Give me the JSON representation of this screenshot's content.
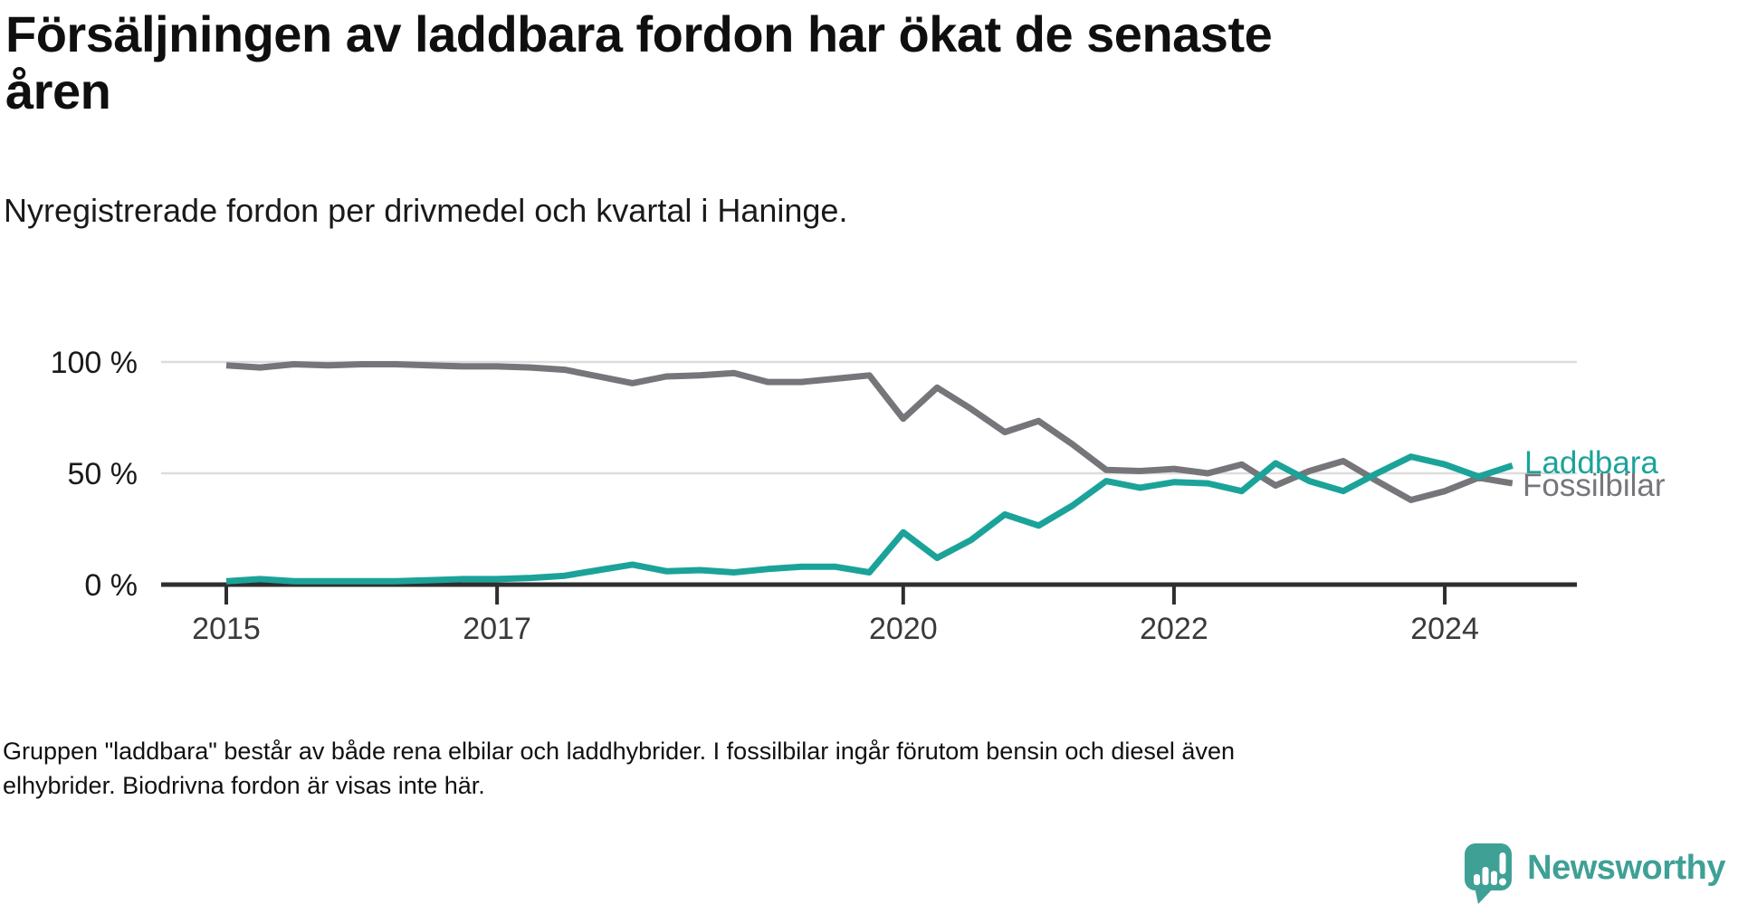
{
  "title": {
    "line1": "Försäljningen av laddbara fordon har ökat de senaste",
    "line2": "åren"
  },
  "subtitle": "Nyregistrerade fordon per drivmedel och kvartal i Haninge.",
  "footnote": {
    "line1": "Gruppen \"laddbara\" består av både rena elbilar och laddhybrider. I fossilbilar ingår förutom bensin och diesel även",
    "line2": "elhybrider. Biodrivna fordon är visas inte här."
  },
  "brand": {
    "name": "Newsworthy",
    "color": "#3fa096",
    "icon": "newsworthy-speech-bubble-chart-icon"
  },
  "colors": {
    "laddbara_line": "#1ba39a",
    "fossil_line": "#75757a",
    "axis": "#2e2e2e",
    "gridline": "#dddddd",
    "tick_label": "#3a3a3a",
    "ytick_label": "#1a1a1a"
  },
  "chart_data": {
    "type": "line",
    "unit": "%",
    "ylim": [
      0,
      100
    ],
    "grid": "horizontal-only",
    "legend": "labels-at-line-ends",
    "x_quarters": [
      "2015-Q1",
      "2015-Q2",
      "2015-Q3",
      "2015-Q4",
      "2016-Q1",
      "2016-Q2",
      "2016-Q3",
      "2016-Q4",
      "2017-Q1",
      "2017-Q2",
      "2017-Q3",
      "2017-Q4",
      "2018-Q1",
      "2018-Q2",
      "2018-Q3",
      "2018-Q4",
      "2019-Q1",
      "2019-Q2",
      "2019-Q3",
      "2019-Q4",
      "2020-Q1",
      "2020-Q2",
      "2020-Q3",
      "2020-Q4",
      "2021-Q1",
      "2021-Q2",
      "2021-Q3",
      "2021-Q4",
      "2022-Q1",
      "2022-Q2",
      "2022-Q3",
      "2022-Q4",
      "2023-Q1",
      "2023-Q2",
      "2023-Q3",
      "2023-Q4",
      "2024-Q1",
      "2024-Q2",
      "2024-Q3"
    ],
    "series": [
      {
        "name": "Laddbara",
        "color": "#1ba39a",
        "values": [
          1.5,
          2.5,
          1.5,
          1.5,
          1.5,
          1.5,
          2,
          2.5,
          2.5,
          3,
          4,
          6.5,
          9,
          6,
          6.5,
          5.5,
          7,
          8,
          8,
          5.5,
          23.5,
          12,
          20,
          31.5,
          26.5,
          35.5,
          46.5,
          43.5,
          46,
          45.5,
          42,
          54.5,
          46.5,
          42,
          50,
          57.5,
          54,
          48.5,
          53.5
        ]
      },
      {
        "name": "Fossilbilar",
        "color": "#75757a",
        "values": [
          98.5,
          97.5,
          99,
          98.5,
          99,
          99,
          98.5,
          98,
          98,
          97.5,
          96.5,
          93.5,
          90.5,
          93.5,
          94,
          95,
          91,
          91,
          92.5,
          94,
          74.5,
          88.5,
          79,
          68.5,
          73.5,
          63,
          51.5,
          51,
          52,
          50,
          54,
          44.5,
          51,
          55.5,
          46.5,
          38,
          42,
          48,
          45.5
        ]
      }
    ],
    "yticks": [
      {
        "value": 100,
        "label": "100 %"
      },
      {
        "value": 50,
        "label": "50 %"
      },
      {
        "value": 0,
        "label": "0 %"
      }
    ],
    "xticks": [
      {
        "year": 2015,
        "label": "2015"
      },
      {
        "year": 2017,
        "label": "2017"
      },
      {
        "year": 2020,
        "label": "2020"
      },
      {
        "year": 2022,
        "label": "2022"
      },
      {
        "year": 2024,
        "label": "2024"
      }
    ]
  }
}
